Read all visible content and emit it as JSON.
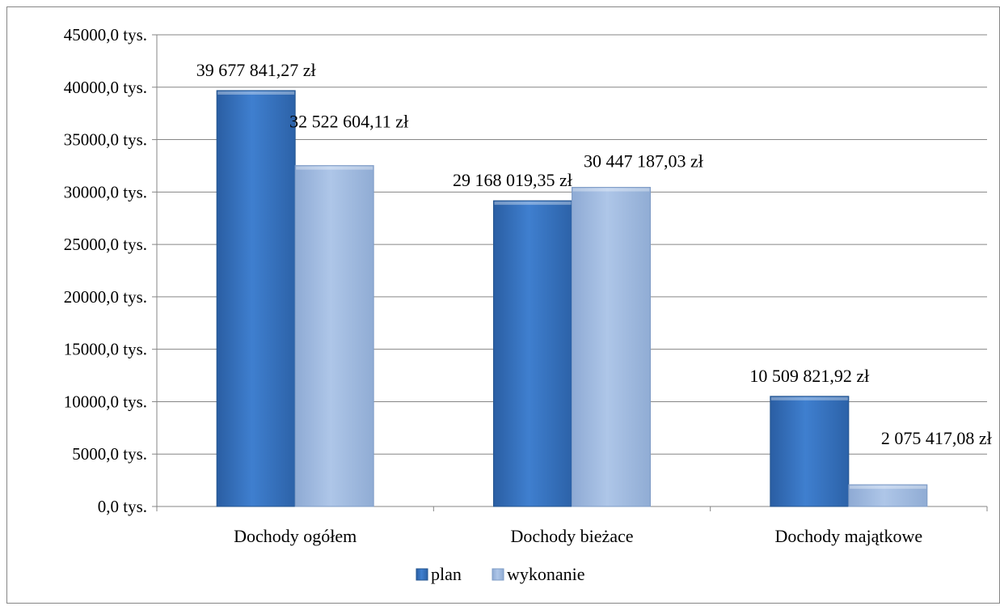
{
  "colors": {
    "plan": "#3f7fcf",
    "plan_dark": "#24558f",
    "wykonanie": "#a6c0e4",
    "wykonanie_dark": "#7f9cc6",
    "gridline": "#868686",
    "axis": "#868686",
    "frame": "#868686"
  },
  "chart_data": {
    "type": "bar",
    "title": "",
    "xlabel": "",
    "ylabel": "",
    "categories": [
      "Dochody ogółem",
      "Dochody bieżace",
      "Dochody majątkowe"
    ],
    "ylim": [
      0,
      45000
    ],
    "y_unit": "tys.",
    "yticks": [
      0,
      5000,
      10000,
      15000,
      20000,
      25000,
      30000,
      35000,
      40000,
      45000
    ],
    "ytick_labels": [
      "0,0 tys.",
      "5000,0 tys.",
      "10000,0 tys.",
      "15000,0 tys.",
      "20000,0 tys.",
      "25000,0 tys.",
      "30000,0 tys.",
      "35000,0 tys.",
      "40000,0 tys.",
      "45000,0 tys."
    ],
    "grid": true,
    "legend_position": "bottom",
    "series": [
      {
        "name": "plan",
        "values": [
          39677.84127,
          29168.01935,
          10509.82192
        ],
        "data_labels": [
          "39 677 841,27 zł",
          "29 168 019,35 zł",
          "10 509 821,92 zł"
        ]
      },
      {
        "name": "wykonanie",
        "values": [
          32522.60411,
          30447.18703,
          2075.41708
        ],
        "data_labels": [
          "32 522 604,11 zł",
          "30 447 187,03 zł",
          "2 075 417,08 zł"
        ]
      }
    ]
  }
}
